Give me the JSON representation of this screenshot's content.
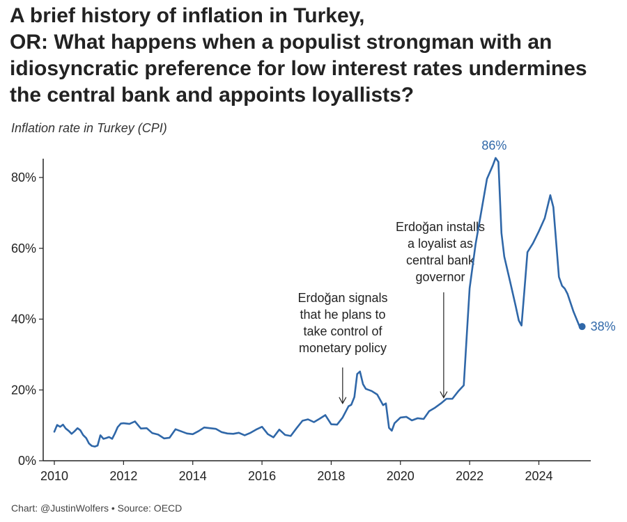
{
  "header": {
    "title_lines": [
      "A brief history of inflation in Turkey,",
      "OR: What happens when a populist strongman with an",
      "idiosyncratic preference for low interest rates undermines",
      "the central bank and appoints loyallists?"
    ],
    "subtitle": "Inflation rate in Turkey (CPI)"
  },
  "footer": {
    "credit": "Chart: @JustinWolfers • Source: OECD"
  },
  "colors": {
    "line": "#2f67a8",
    "axis": "#222222",
    "text": "#222222"
  },
  "chart_data": {
    "type": "line",
    "title": "A brief history of inflation in Turkey, OR: What happens when a populist strongman with an idiosyncratic preference for low interest rates undermines the central bank and appoints loyallists?",
    "subtitle": "Inflation rate in Turkey (CPI)",
    "xlabel": "",
    "ylabel": "",
    "xlim": [
      2010,
      2025.5
    ],
    "ylim": [
      0,
      85
    ],
    "x_ticks": [
      2010,
      2012,
      2014,
      2016,
      2018,
      2020,
      2022,
      2024
    ],
    "x_tick_labels": [
      "2010",
      "2012",
      "2014",
      "2016",
      "2018",
      "2020",
      "2022",
      "2024"
    ],
    "y_ticks": [
      0,
      20,
      40,
      60,
      80
    ],
    "y_tick_labels": [
      "0%",
      "20%",
      "40%",
      "60%",
      "80%"
    ],
    "grid": false,
    "legend": "none",
    "series": [
      {
        "x": [
          2010.0,
          2010.08,
          2010.17,
          2010.25,
          2010.33,
          2010.42,
          2010.5,
          2010.58,
          2010.67,
          2010.75,
          2010.83,
          2010.92,
          2011.0,
          2011.08,
          2011.17,
          2011.25,
          2011.33,
          2011.42,
          2011.5,
          2011.58,
          2011.67,
          2011.75,
          2011.83,
          2011.92,
          2012.0,
          2012.17,
          2012.33,
          2012.5,
          2012.67,
          2012.83,
          2013.0,
          2013.17,
          2013.33,
          2013.5,
          2013.67,
          2013.83,
          2014.0,
          2014.17,
          2014.33,
          2014.5,
          2014.67,
          2014.83,
          2015.0,
          2015.17,
          2015.33,
          2015.5,
          2015.67,
          2015.83,
          2016.0,
          2016.17,
          2016.33,
          2016.5,
          2016.67,
          2016.83,
          2017.0,
          2017.17,
          2017.33,
          2017.5,
          2017.67,
          2017.83,
          2018.0,
          2018.17,
          2018.33,
          2018.5,
          2018.58,
          2018.67,
          2018.75,
          2018.83,
          2018.92,
          2019.0,
          2019.17,
          2019.33,
          2019.5,
          2019.58,
          2019.67,
          2019.75,
          2019.83,
          2020.0,
          2020.17,
          2020.33,
          2020.5,
          2020.67,
          2020.83,
          2021.0,
          2021.17,
          2021.33,
          2021.5,
          2021.67,
          2021.83,
          2021.92,
          2022.0,
          2022.17,
          2022.33,
          2022.5,
          2022.67,
          2022.75,
          2022.83,
          2022.92,
          2023.0,
          2023.17,
          2023.33,
          2023.42,
          2023.5,
          2023.58,
          2023.67,
          2023.83,
          2024.0,
          2024.17,
          2024.33,
          2024.42,
          2024.5,
          2024.58,
          2024.67,
          2024.75,
          2024.83,
          2025.0,
          2025.17,
          2025.25
        ],
        "values": [
          8.2,
          10.1,
          9.6,
          10.2,
          9.1,
          8.4,
          7.6,
          8.3,
          9.2,
          8.6,
          7.3,
          6.4,
          4.9,
          4.2,
          4.0,
          4.3,
          7.2,
          6.2,
          6.4,
          6.7,
          6.2,
          7.7,
          9.5,
          10.5,
          10.6,
          10.4,
          11.1,
          9.1,
          9.2,
          7.8,
          7.4,
          6.3,
          6.5,
          8.9,
          8.3,
          7.7,
          7.5,
          8.4,
          9.4,
          9.2,
          9.0,
          8.1,
          7.7,
          7.6,
          7.9,
          7.2,
          7.9,
          8.8,
          9.6,
          7.5,
          6.6,
          8.8,
          7.3,
          7.0,
          9.2,
          11.3,
          11.7,
          10.9,
          11.9,
          12.9,
          10.3,
          10.2,
          12.2,
          15.4,
          15.8,
          18.0,
          24.5,
          25.2,
          21.6,
          20.3,
          19.7,
          18.7,
          15.7,
          16.2,
          9.3,
          8.5,
          10.6,
          12.2,
          12.4,
          11.4,
          12.0,
          11.8,
          14.0,
          15.0,
          16.2,
          17.5,
          17.5,
          19.6,
          21.3,
          36.1,
          48.7,
          61.1,
          70.0,
          79.6,
          83.4,
          85.5,
          84.4,
          64.3,
          57.7,
          50.5,
          43.7,
          39.6,
          38.2,
          47.8,
          58.9,
          61.4,
          64.8,
          68.5,
          75.0,
          71.6,
          61.8,
          51.9,
          49.4,
          48.6,
          47.1,
          42.1,
          38.1,
          37.9
        ]
      }
    ],
    "point_labels": [
      {
        "text": "86%",
        "x": 2022.75,
        "y": 85.5
      },
      {
        "text": "38%",
        "x": 2025.25,
        "y": 37.9
      }
    ],
    "annotations": [
      {
        "lines": [
          "Erdoğan signals",
          "that he plans to",
          "take control of",
          "monetary policy"
        ],
        "x": 2018.33,
        "y": 15.4
      },
      {
        "lines": [
          "Erdoğan installs",
          "a loyalist as",
          "central bank",
          "governor"
        ],
        "x": 2021.25,
        "y": 17.0
      }
    ]
  }
}
